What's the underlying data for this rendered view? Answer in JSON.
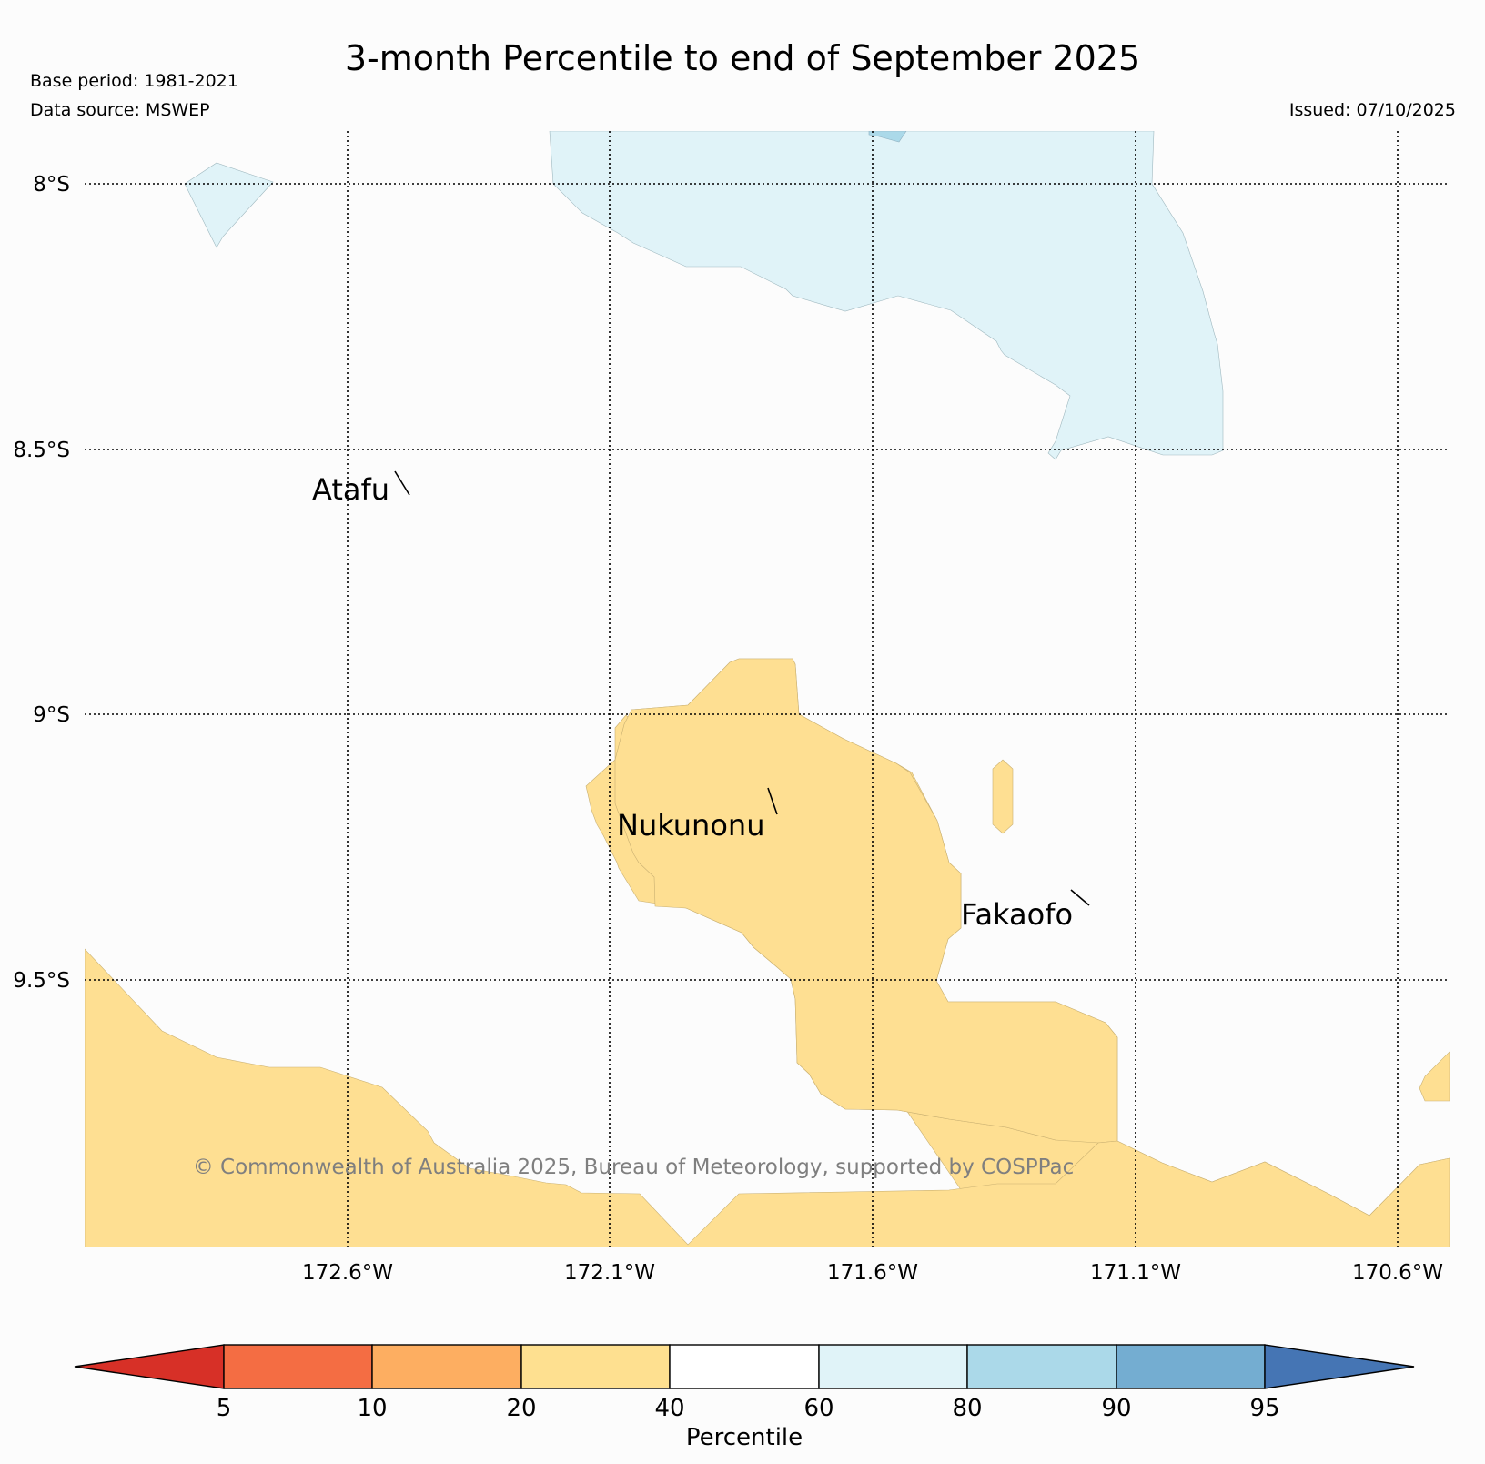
{
  "title": "3-month Percentile to end of September 2025",
  "meta": {
    "base_period": "Base period: 1981-2021",
    "data_source": "Data source: MSWEP",
    "issued": "Issued: 07/10/2025"
  },
  "axes": {
    "latitude_labels": [
      "8°S",
      "8.5°S",
      "9°S",
      "9.5°S"
    ],
    "longitude_labels": [
      "172.6°W",
      "172.1°W",
      "171.6°W",
      "171.1°W",
      "170.6°W"
    ]
  },
  "places": [
    "Atafu",
    "Nukunonu",
    "Fakaofo"
  ],
  "copyright": "© Commonwealth of Australia 2025, Bureau of Meteorology, supported by COSPPac",
  "legend": {
    "title": "Percentile",
    "tick_labels": [
      "5",
      "10",
      "20",
      "40",
      "60",
      "80",
      "90",
      "95"
    ],
    "colors": [
      "#d73027",
      "#f46d43",
      "#fdae61",
      "#fee090",
      "#ffffff",
      "#e0f3f8",
      "#abd9e9",
      "#74add1",
      "#4575b4"
    ]
  },
  "region_colors": {
    "below_normal_20_40": "#fedf92",
    "above_normal_60_80": "#e0f3f8",
    "above_normal_80_90": "#abd9e9"
  }
}
